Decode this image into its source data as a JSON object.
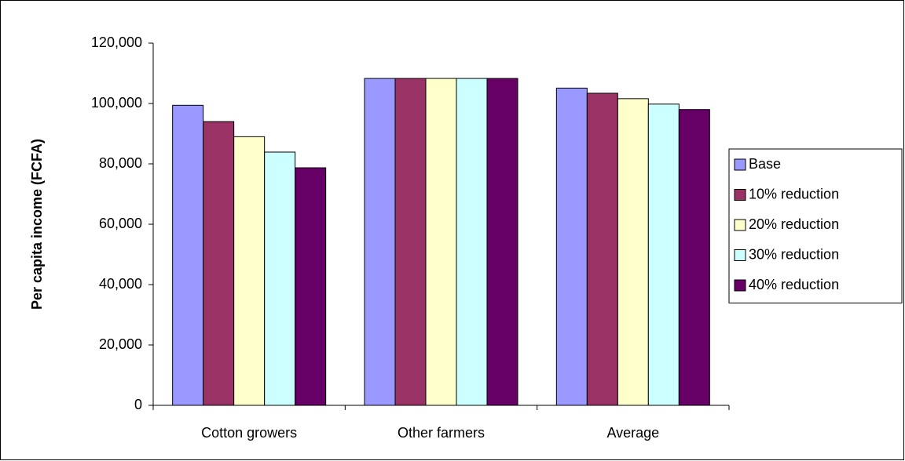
{
  "chart_data": {
    "type": "bar",
    "y_label": "Per capita income (FCFA)",
    "categories": [
      "Cotton growers",
      "Other farmers",
      "Average"
    ],
    "series": [
      {
        "name": "Base",
        "color": "#9999ff",
        "values": [
          99400,
          108300,
          105100
        ]
      },
      {
        "name": "10% reduction",
        "color": "#993366",
        "values": [
          94000,
          108300,
          103400
        ]
      },
      {
        "name": "20% reduction",
        "color": "#ffffcc",
        "values": [
          89000,
          108300,
          101600
        ]
      },
      {
        "name": "30% reduction",
        "color": "#ccffff",
        "values": [
          83900,
          108300,
          99800
        ]
      },
      {
        "name": "40% reduction",
        "color": "#660066",
        "values": [
          78700,
          108300,
          98000
        ]
      }
    ],
    "ylim": [
      0,
      120000
    ],
    "yticks": [
      0,
      {
        "value": 20000,
        "label": "20,000"
      },
      {
        "value": 40000,
        "label": "40,000"
      },
      {
        "value": 60000,
        "label": "60,000"
      },
      {
        "value": 80000,
        "label": "80,000"
      },
      {
        "value": 100000,
        "label": "100,000"
      },
      {
        "value": 120000,
        "label": "120,000"
      }
    ],
    "grid": false,
    "legend": "right"
  }
}
